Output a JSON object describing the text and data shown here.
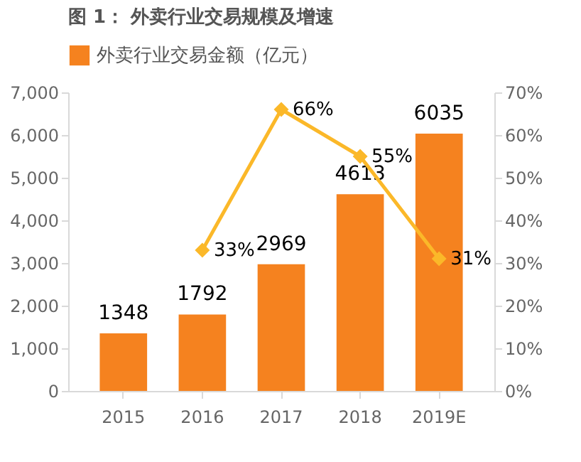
{
  "chart_data": {
    "type": "bar",
    "title": "图 1：  外卖行业交易规模及增速",
    "categories": [
      "2015",
      "2016",
      "2017",
      "2018",
      "2019E"
    ],
    "series": [
      {
        "name": "外卖行业交易金额（亿元）",
        "color": "#f5821f",
        "values": [
          1348,
          1792,
          2969,
          4613,
          6035
        ]
      },
      {
        "type": "line",
        "axis": "y2",
        "color": "#fbb829",
        "values": [
          null,
          33,
          66,
          55,
          31
        ],
        "value_labels": [
          null,
          "33%",
          "66%",
          "55%",
          "31%"
        ]
      }
    ],
    "ylim": [
      0,
      7000
    ],
    "yticks": [
      {
        "value": 0,
        "label": "0"
      },
      {
        "value": 1000,
        "label": "1,000"
      },
      {
        "value": 2000,
        "label": "2,000"
      },
      {
        "value": 3000,
        "label": "3,000"
      },
      {
        "value": 4000,
        "label": "4,000"
      },
      {
        "value": 5000,
        "label": "5,000"
      },
      {
        "value": 6000,
        "label": "6,000"
      },
      {
        "value": 7000,
        "label": "7,000"
      }
    ],
    "y2lim": [
      0,
      70
    ],
    "y2ticks": [
      {
        "value": 0,
        "label": "0%"
      },
      {
        "value": 10,
        "label": "10%"
      },
      {
        "value": 20,
        "label": "20%"
      },
      {
        "value": 30,
        "label": "30%"
      },
      {
        "value": 40,
        "label": "40%"
      },
      {
        "value": 50,
        "label": "50%"
      },
      {
        "value": 60,
        "label": "60%"
      },
      {
        "value": 70,
        "label": "70%"
      }
    ],
    "data_labels": true,
    "legend": "top",
    "marker": "diamond",
    "grid": false
  }
}
